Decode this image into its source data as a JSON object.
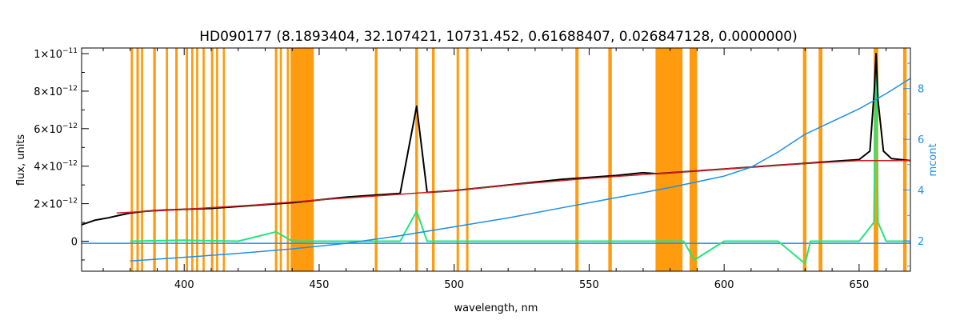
{
  "chart_data": {
    "type": "line",
    "title": "HD090177    (8.1893404, 32.107421, 10731.452, 0.61688407, 0.026847128, 0.0000000)",
    "xlabel": "wavelength, nm",
    "ylabel": "flux, units",
    "y2label": "mcont",
    "xlim": [
      362,
      669
    ],
    "ylim": [
      -1.6e-12,
      1.03e-11
    ],
    "y2lim": [
      0.8,
      9.6
    ],
    "grid": false,
    "x_ticks": [
      {
        "value": 400,
        "label": "400"
      },
      {
        "value": 450,
        "label": "450"
      },
      {
        "value": 500,
        "label": "500"
      },
      {
        "value": 550,
        "label": "550"
      },
      {
        "value": 600,
        "label": "600"
      },
      {
        "value": 650,
        "label": "650"
      }
    ],
    "y_ticks": [
      {
        "value": 0,
        "base": "0",
        "exp": ""
      },
      {
        "value": 2e-12,
        "base": "2×10",
        "exp": "−12"
      },
      {
        "value": 4e-12,
        "base": "4×10",
        "exp": "−12"
      },
      {
        "value": 6e-12,
        "base": "6×10",
        "exp": "−12"
      },
      {
        "value": 8e-12,
        "base": "8×10",
        "exp": "−12"
      },
      {
        "value": 1e-11,
        "base": "1×10",
        "exp": "−11"
      }
    ],
    "y2_ticks": [
      {
        "value": 2,
        "label": "2"
      },
      {
        "value": 4,
        "label": "4"
      },
      {
        "value": 6,
        "label": "6"
      },
      {
        "value": 8,
        "label": "8"
      }
    ],
    "masked_bands": [
      [
        380.2,
        381.0
      ],
      [
        382.3,
        383.2
      ],
      [
        384.0,
        384.8
      ],
      [
        388.5,
        389.5
      ],
      [
        393.2,
        394.0
      ],
      [
        396.7,
        397.6
      ],
      [
        400.6,
        401.4
      ],
      [
        402.6,
        403.4
      ],
      [
        404.4,
        405.2
      ],
      [
        406.8,
        407.6
      ],
      [
        409.9,
        410.8
      ],
      [
        411.8,
        412.6
      ],
      [
        414.3,
        415.1
      ],
      [
        433.6,
        434.5
      ],
      [
        435.4,
        436.2
      ],
      [
        438.0,
        438.8
      ],
      [
        439.4,
        448.0
      ],
      [
        470.6,
        471.6
      ],
      [
        485.6,
        486.6
      ],
      [
        491.8,
        492.8
      ],
      [
        500.9,
        501.8
      ],
      [
        504.4,
        505.3
      ],
      [
        544.9,
        546.1
      ],
      [
        557.1,
        558.4
      ],
      [
        574.6,
        584.6
      ],
      [
        587.2,
        590.0
      ],
      [
        629.2,
        630.5
      ],
      [
        635.0,
        636.4
      ],
      [
        655.4,
        657.1
      ],
      [
        666.3,
        667.6
      ]
    ],
    "series": [
      {
        "type": "observed",
        "color": "#000000",
        "x": [
          362,
          367,
          372,
          376,
          380,
          386,
          392,
          400,
          410,
          420,
          430,
          440,
          450,
          460,
          470,
          480,
          486.1,
          490,
          500,
          510,
          520,
          530,
          540,
          550,
          560,
          570,
          575,
          585,
          590,
          600,
          610,
          620,
          630,
          640,
          650,
          654,
          655.6,
          656.3,
          657,
          659,
          662,
          669
        ],
        "y": [
          8.8e-13,
          1.12e-12,
          1.25e-12,
          1.38e-12,
          1.5e-12,
          1.6e-12,
          1.65e-12,
          1.7e-12,
          1.75e-12,
          1.85e-12,
          1.95e-12,
          2.05e-12,
          2.2e-12,
          2.35e-12,
          2.45e-12,
          2.55e-12,
          7.2e-12,
          2.6e-12,
          2.7e-12,
          2.85e-12,
          3e-12,
          3.15e-12,
          3.3e-12,
          3.4e-12,
          3.5e-12,
          3.65e-12,
          3.6e-12,
          3.7e-12,
          3.75e-12,
          3.85e-12,
          3.95e-12,
          4.05e-12,
          4.15e-12,
          4.25e-12,
          4.35e-12,
          4.8e-12,
          8e-12,
          1e-11,
          7.5e-12,
          4.8e-12,
          4.4e-12,
          4.3e-12
        ]
      },
      {
        "type": "model",
        "color": "#cc1f1f",
        "x": [
          375,
          400,
          425,
          450,
          475,
          500,
          525,
          550,
          575,
          600,
          625,
          650,
          669
        ],
        "y": [
          1.5e-12,
          1.7e-12,
          1.92e-12,
          2.2e-12,
          2.45e-12,
          2.7e-12,
          3.05e-12,
          3.35e-12,
          3.6e-12,
          3.85e-12,
          4.1e-12,
          4.3e-12,
          4.3e-12
        ]
      },
      {
        "type": "residual",
        "color": "#22e57a",
        "x": [
          380,
          400,
          420,
          434,
          440,
          460,
          480,
          486.1,
          490,
          500,
          520,
          540,
          560,
          575,
          585,
          589,
          600,
          620,
          630,
          632,
          640,
          650,
          655.5,
          656.3,
          657,
          660,
          669
        ],
        "y": [
          0,
          5e-14,
          0,
          5e-13,
          0,
          0,
          0,
          1.6e-12,
          0,
          0,
          0,
          0,
          0,
          0,
          0,
          -1e-12,
          0,
          0,
          -1.2e-12,
          0,
          0,
          0,
          1e-12,
          1e-11,
          1e-12,
          0,
          0
        ]
      },
      {
        "type": "mcont",
        "axis": "right",
        "color": "#1f8fe6",
        "x": [
          362,
          380,
          400,
          425,
          450,
          475,
          500,
          525,
          550,
          575,
          600,
          615,
          625,
          640,
          655,
          669
        ],
        "y": [
          1.9,
          1.9,
          1.9,
          1.9,
          1.9,
          1.9,
          1.9,
          1.9,
          1.9,
          1.9,
          1.9,
          1.9,
          1.9,
          1.9,
          1.9,
          1.9
        ]
      },
      {
        "type": "continuum",
        "axis": "right",
        "color": "#1f8fe6",
        "x": [
          380,
          400,
          420,
          440,
          460,
          480,
          500,
          520,
          540,
          560,
          580,
          600,
          610,
          620,
          630,
          640,
          650,
          660,
          669
        ],
        "y": [
          1.2,
          1.35,
          1.5,
          1.68,
          1.9,
          2.2,
          2.55,
          2.9,
          3.3,
          3.7,
          4.1,
          4.55,
          4.9,
          5.5,
          6.2,
          6.7,
          7.2,
          7.8,
          8.4
        ]
      }
    ]
  }
}
